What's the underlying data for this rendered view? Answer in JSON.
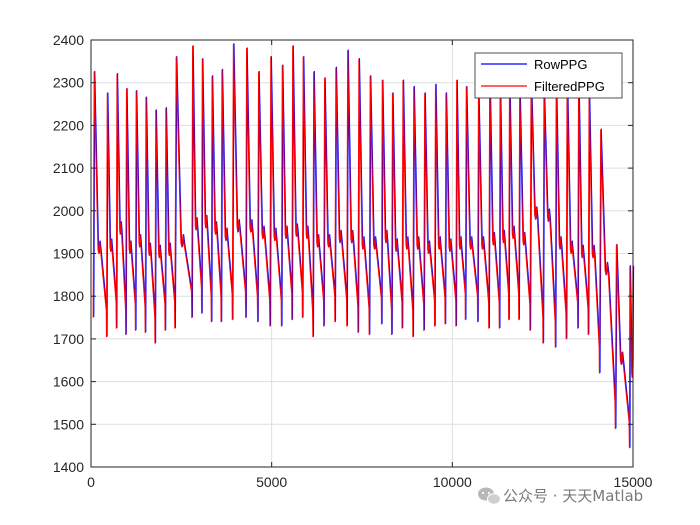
{
  "chart_data": {
    "type": "line",
    "title": "",
    "xlabel": "",
    "ylabel": "",
    "xlim": [
      0,
      15000
    ],
    "ylim": [
      1400,
      2400
    ],
    "xticks": [
      0,
      5000,
      10000,
      15000
    ],
    "xtick_labels": [
      "0",
      "5000",
      "10000",
      "15000"
    ],
    "yticks": [
      1400,
      1500,
      1600,
      1700,
      1800,
      1900,
      2000,
      2100,
      2200,
      2300,
      2400
    ],
    "ytick_labels": [
      "1400",
      "1500",
      "1600",
      "1700",
      "1800",
      "1900",
      "2000",
      "2100",
      "2200",
      "2300",
      "2400"
    ],
    "grid": true,
    "legend_position": "top-right",
    "series": [
      {
        "name": "RowPPG",
        "color": "#0000ff"
      },
      {
        "name": "FilteredPPG",
        "color": "#ff0000"
      }
    ],
    "beats": [
      [
        60,
        1750,
        2325,
        1910
      ],
      [
        430,
        1705,
        2275,
        1915
      ],
      [
        700,
        1725,
        2320,
        1955
      ],
      [
        960,
        1710,
        2285,
        1910
      ],
      [
        1230,
        1720,
        2280,
        1925
      ],
      [
        1500,
        1715,
        2265,
        1905
      ],
      [
        1770,
        1690,
        2235,
        1900
      ],
      [
        2050,
        1720,
        2240,
        1905
      ],
      [
        2320,
        1725,
        2360,
        1925
      ],
      [
        2790,
        1750,
        2385,
        1965
      ],
      [
        3060,
        1760,
        2355,
        1970
      ],
      [
        3330,
        1740,
        2315,
        1955
      ],
      [
        3600,
        1740,
        2330,
        1940
      ],
      [
        3910,
        1745,
        2390,
        1960
      ],
      [
        4280,
        1750,
        2380,
        1960
      ],
      [
        4610,
        1740,
        2325,
        1945
      ],
      [
        4950,
        1730,
        2360,
        1940
      ],
      [
        5270,
        1730,
        2340,
        1945
      ],
      [
        5560,
        1745,
        2385,
        1950
      ],
      [
        5850,
        1750,
        2360,
        1945
      ],
      [
        6140,
        1705,
        2325,
        1925
      ],
      [
        6440,
        1730,
        2310,
        1925
      ],
      [
        6750,
        1740,
        2335,
        1935
      ],
      [
        7080,
        1730,
        2375,
        1935
      ],
      [
        7390,
        1715,
        2355,
        1920
      ],
      [
        7700,
        1710,
        2315,
        1920
      ],
      [
        8040,
        1735,
        2305,
        1935
      ],
      [
        8320,
        1710,
        2275,
        1915
      ],
      [
        8610,
        1725,
        2305,
        1920
      ],
      [
        8910,
        1705,
        2290,
        1920
      ],
      [
        9210,
        1720,
        2275,
        1910
      ],
      [
        9510,
        1730,
        2295,
        1920
      ],
      [
        9800,
        1735,
        2275,
        1915
      ],
      [
        10100,
        1730,
        2305,
        1920
      ],
      [
        10360,
        1745,
        2290,
        1920
      ],
      [
        10700,
        1740,
        2275,
        1920
      ],
      [
        11010,
        1725,
        2310,
        1930
      ],
      [
        11300,
        1725,
        2285,
        1935
      ],
      [
        11560,
        1745,
        2295,
        1945
      ],
      [
        11840,
        1745,
        2280,
        1930
      ],
      [
        12150,
        1720,
        2305,
        1990
      ],
      [
        12510,
        1690,
        2280,
        1985
      ],
      [
        12850,
        1680,
        2290,
        1920
      ],
      [
        13150,
        1700,
        2305,
        1910
      ],
      [
        13470,
        1725,
        2300,
        1900
      ],
      [
        13760,
        1710,
        2275,
        1900
      ],
      [
        14070,
        1620,
        2190,
        1860
      ],
      [
        14510,
        1490,
        1920,
        1650
      ],
      [
        14900,
        1445,
        1870,
        1620
      ]
    ],
    "end_point": [
      15000,
      1870
    ]
  },
  "watermark": {
    "text": "公众号 · 天天Matlab"
  }
}
